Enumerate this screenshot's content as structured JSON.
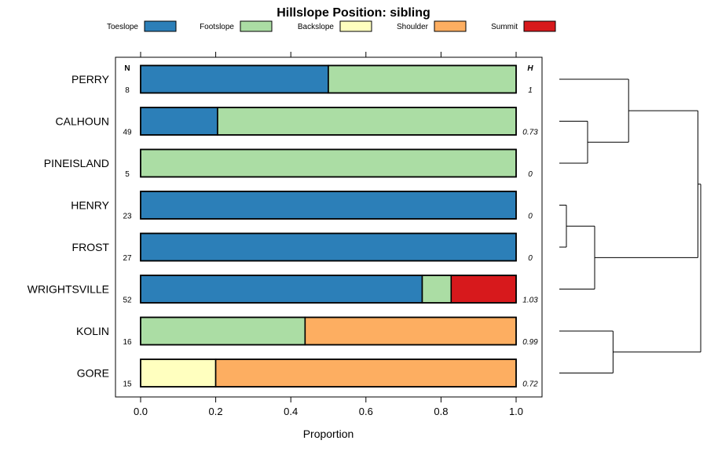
{
  "chart_data": {
    "type": "bar",
    "orientation": "horizontal",
    "stacked": true,
    "title": "Hillslope Position: sibling",
    "xlabel": "Proportion",
    "ylabel": "",
    "xlim": [
      0,
      1
    ],
    "xticks": [
      "0.0",
      "0.2",
      "0.4",
      "0.6",
      "0.8",
      "1.0"
    ],
    "n_header": "N",
    "h_header": "H",
    "legend": [
      {
        "name": "Toeslope",
        "color": "#2c7fb8"
      },
      {
        "name": "Footslope",
        "color": "#abdda4"
      },
      {
        "name": "Backslope",
        "color": "#ffffbf"
      },
      {
        "name": "Shoulder",
        "color": "#fdae61"
      },
      {
        "name": "Summit",
        "color": "#d7191c"
      }
    ],
    "categories": [
      "PERRY",
      "CALHOUN",
      "PINEISLAND",
      "HENRY",
      "FROST",
      "WRIGHTSVILLE",
      "KOLIN",
      "GORE"
    ],
    "n": [
      "8",
      "49",
      "5",
      "23",
      "27",
      "52",
      "16",
      "15"
    ],
    "h": [
      "1",
      "0.73",
      "0",
      "0",
      "0",
      "1.03",
      "0.99",
      "0.72"
    ],
    "series": [
      {
        "name": "Toeslope",
        "values": [
          0.5,
          0.205,
          0,
          1,
          1,
          0.75,
          0,
          0
        ]
      },
      {
        "name": "Footslope",
        "values": [
          0.5,
          0.795,
          1,
          0,
          0,
          0.077,
          0.438,
          0
        ]
      },
      {
        "name": "Backslope",
        "values": [
          0,
          0,
          0,
          0,
          0,
          0,
          0,
          0.2
        ]
      },
      {
        "name": "Shoulder",
        "values": [
          0,
          0,
          0,
          0,
          0,
          0,
          0.562,
          0.8
        ]
      },
      {
        "name": "Summit",
        "values": [
          0,
          0,
          0,
          0,
          0,
          0.173,
          0,
          0
        ]
      }
    ],
    "dendrogram": {
      "leaves": [
        "PERRY",
        "CALHOUN",
        "PINEISLAND",
        "HENRY",
        "FROST",
        "WRIGHTSVILLE",
        "KOLIN",
        "GORE"
      ],
      "merges": [
        {
          "left": "HENRY",
          "right": "FROST",
          "height": 0.05
        },
        {
          "left": "CALHOUN",
          "right": "PINEISLAND",
          "height": 0.2
        },
        {
          "left": "KOLIN",
          "right": "GORE",
          "height": 0.38
        },
        {
          "left": "HENRY+FROST",
          "right": "WRIGHTSVILLE",
          "height": 0.25
        },
        {
          "left": "PERRY",
          "right": "CALHOUN+PINEISLAND",
          "height": 0.49
        },
        {
          "left": "PERRY+CALHOUN+PINEISLAND",
          "right": "HENRY+FROST+WRIGHTSVILLE",
          "height": 0.98
        },
        {
          "left": "ALL_UPPER",
          "right": "KOLIN+GORE",
          "height": 1.0
        }
      ]
    }
  }
}
